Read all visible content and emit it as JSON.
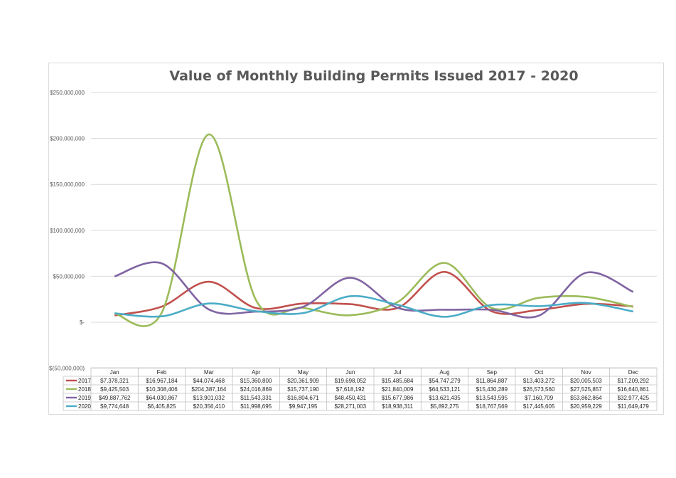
{
  "chart_data": {
    "type": "line",
    "title": "Value of Monthly Building Permits Issued 2017 - 2020",
    "xlabel": "",
    "ylabel": "",
    "ylim": [
      -50000000,
      250000000
    ],
    "y_ticks": [
      {
        "value": 250000000,
        "label": "$250,000,000"
      },
      {
        "value": 200000000,
        "label": "$200,000,000"
      },
      {
        "value": 150000000,
        "label": "$150,000,000"
      },
      {
        "value": 100000000,
        "label": "$100,000,000"
      },
      {
        "value": 50000000,
        "label": "$50,000,000"
      },
      {
        "value": 0,
        "label": "$-"
      },
      {
        "value": -50000000,
        "label": "$(50,000,000)"
      }
    ],
    "grid": true,
    "legend": "data-table",
    "categories": [
      "Jan",
      "Feb",
      "Mar",
      "Apr",
      "May",
      "Jun",
      "Jul",
      "Aug",
      "Sep",
      "Oct",
      "Nov",
      "Dec"
    ],
    "series": [
      {
        "name": "2017",
        "color": "#c0504d",
        "values": [
          7378321,
          16967184,
          44074468,
          15360800,
          20361909,
          19698052,
          15485684,
          54747279,
          11864887,
          13403272,
          20005503,
          17209292
        ],
        "labels": [
          "$7,378,321",
          "$16,967,184",
          "$44,074,468",
          "$15,360,800",
          "$20,361,909",
          "$19,698,052",
          "$15,485,684",
          "$54,747,279",
          "$11,864,887",
          "$13,403,272",
          "$20,005,503",
          "$17,209,292"
        ]
      },
      {
        "name": "2018",
        "color": "#9bbb59",
        "values": [
          9425503,
          10308406,
          204387164,
          24016869,
          15737190,
          7618192,
          21840009,
          64533121,
          15430289,
          26573560,
          27525857,
          16640861
        ],
        "labels": [
          "$9,425,503",
          "$10,308,406",
          "$204,387,164",
          "$24,016,869",
          "$15,737,190",
          "$7,618,192",
          "$21,840,009",
          "$64,533,121",
          "$15,430,289",
          "$26,573,560",
          "$27,525,857",
          "$16,640,861"
        ]
      },
      {
        "name": "2019",
        "color": "#8064a2",
        "values": [
          49887762,
          64030867,
          13901032,
          11543331,
          16804671,
          48450431,
          15677986,
          13621435,
          13543595,
          7160709,
          53862864,
          32977425
        ],
        "labels": [
          "$49,887,762",
          "$64,030,867",
          "$13,901,032",
          "$11,543,331",
          "$16,804,671",
          "$48,450,431",
          "$15,677,986",
          "$13,621,435",
          "$13,543,595",
          "$7,160,709",
          "$53,862,864",
          "$32,977,425"
        ]
      },
      {
        "name": "2020",
        "color": "#4bacc6",
        "values": [
          9774648,
          6405825,
          20356410,
          11998695,
          9947195,
          28271003,
          18938311,
          5892275,
          18767569,
          17445605,
          20959229,
          11649479
        ],
        "labels": [
          "$9,774,648",
          "$6,405,825",
          "$20,356,410",
          "$11,998,695",
          "$9,947,195",
          "$28,271,003",
          "$18,938,311",
          "$5,892,275",
          "$18,767,569",
          "$17,445,605",
          "$20,959,229",
          "$11,649,479"
        ]
      }
    ]
  }
}
